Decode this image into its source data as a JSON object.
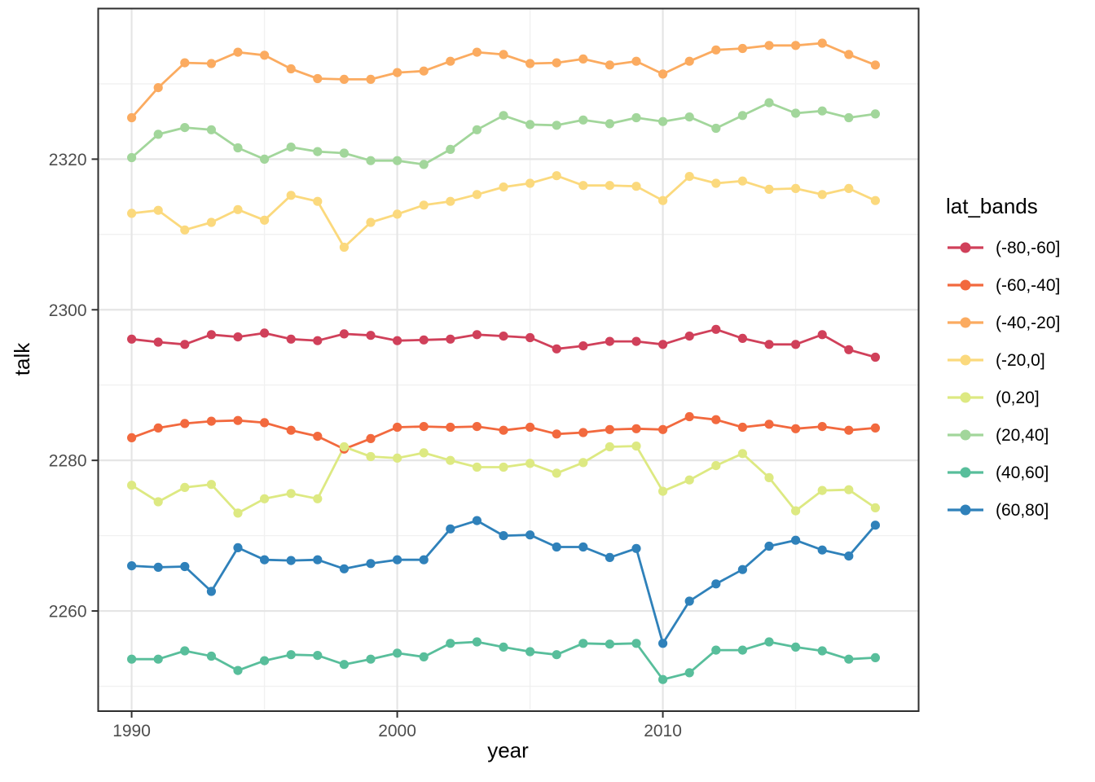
{
  "figure": {
    "x_axis_title": "year",
    "y_axis_title": "talk",
    "legend_title": "lat_bands"
  },
  "colors": {
    "background": "#FFFFFF",
    "panel_background": "#FFFFFF",
    "panel_border": "#2E2E2E",
    "grid_major": "#E5E5E5",
    "grid_minor": "#F1F1F1",
    "tick_mark": "#333333",
    "tick_label": "#4D4D4D",
    "axis_title": "#000000",
    "legend_text": "#000000"
  },
  "chart_data": {
    "type": "line",
    "title": "",
    "xlabel": "year",
    "ylabel": "talk",
    "legend_title": "lat_bands",
    "legend_position": "right",
    "grid": true,
    "marker": "point",
    "xlim": [
      1988.74,
      2019.63
    ],
    "ylim": [
      2246.7,
      2340.0
    ],
    "x_major_ticks": [
      1990,
      2000,
      2010
    ],
    "x_minor_gridlines": [
      1995,
      2005,
      2015
    ],
    "y_major_ticks": [
      2260,
      2280,
      2300,
      2320
    ],
    "y_minor_gridlines": [
      2250,
      2270,
      2290,
      2310,
      2330
    ],
    "x": [
      1990,
      1991,
      1992,
      1993,
      1994,
      1995,
      1996,
      1997,
      1998,
      1999,
      2000,
      2001,
      2002,
      2003,
      2004,
      2005,
      2006,
      2007,
      2008,
      2009,
      2010,
      2011,
      2012,
      2013,
      2014,
      2015,
      2016,
      2017,
      2018
    ],
    "series": [
      {
        "name": "(-80,-60]",
        "color": "#D0405A",
        "values": [
          2296.1,
          2295.7,
          2295.4,
          2296.7,
          2296.4,
          2296.9,
          2296.1,
          2295.9,
          2296.8,
          2296.6,
          2295.9,
          2296.0,
          2296.1,
          2296.7,
          2296.5,
          2296.3,
          2294.8,
          2295.2,
          2295.8,
          2295.8,
          2295.4,
          2296.5,
          2297.4,
          2296.2,
          2295.4,
          2295.4,
          2296.7,
          2294.7,
          2293.7
        ]
      },
      {
        "name": "(-60,-40]",
        "color": "#F2693E",
        "values": [
          2283.0,
          2284.3,
          2284.9,
          2285.2,
          2285.3,
          2285.0,
          2284.0,
          2283.2,
          2281.5,
          2282.9,
          2284.4,
          2284.5,
          2284.4,
          2284.5,
          2284.0,
          2284.4,
          2283.5,
          2283.7,
          2284.1,
          2284.2,
          2284.1,
          2285.8,
          2285.4,
          2284.4,
          2284.8,
          2284.2,
          2284.5,
          2284.0,
          2284.3
        ]
      },
      {
        "name": "(-40,-20]",
        "color": "#FBAB60",
        "values": [
          2325.5,
          2329.5,
          2332.8,
          2332.7,
          2334.2,
          2333.8,
          2332.0,
          2330.7,
          2330.6,
          2330.6,
          2331.5,
          2331.7,
          2333.0,
          2334.2,
          2333.9,
          2332.7,
          2332.8,
          2333.3,
          2332.5,
          2333.0,
          2331.3,
          2333.0,
          2334.5,
          2334.7,
          2335.1,
          2335.1,
          2335.4,
          2333.9,
          2332.5
        ]
      },
      {
        "name": "(-20,0]",
        "color": "#FBD97D",
        "values": [
          2312.8,
          2313.2,
          2310.6,
          2311.6,
          2313.3,
          2311.9,
          2315.2,
          2314.4,
          2308.3,
          2311.6,
          2312.7,
          2313.9,
          2314.4,
          2315.3,
          2316.3,
          2316.8,
          2317.8,
          2316.5,
          2316.5,
          2316.4,
          2314.5,
          2317.7,
          2316.8,
          2317.1,
          2316.0,
          2316.1,
          2315.3,
          2316.1,
          2314.5
        ]
      },
      {
        "name": "(0,20]",
        "color": "#DDE982",
        "values": [
          2276.7,
          2274.5,
          2276.4,
          2276.8,
          2273.0,
          2274.9,
          2275.6,
          2274.9,
          2281.8,
          2280.5,
          2280.3,
          2281.0,
          2280.0,
          2279.1,
          2279.1,
          2279.6,
          2278.3,
          2279.7,
          2281.8,
          2281.9,
          2275.9,
          2277.4,
          2279.3,
          2280.9,
          2277.7,
          2273.3,
          2276.0,
          2276.1,
          2273.7
        ]
      },
      {
        "name": "(20,40]",
        "color": "#A2D69B",
        "values": [
          2320.2,
          2323.3,
          2324.2,
          2323.9,
          2321.5,
          2320.0,
          2321.6,
          2321.0,
          2320.8,
          2319.8,
          2319.8,
          2319.3,
          2321.3,
          2323.9,
          2325.8,
          2324.6,
          2324.5,
          2325.2,
          2324.7,
          2325.5,
          2325.0,
          2325.6,
          2324.1,
          2325.8,
          2327.5,
          2326.1,
          2326.4,
          2325.5,
          2326.0
        ]
      },
      {
        "name": "(40,60]",
        "color": "#58BE9B",
        "values": [
          2253.6,
          2253.6,
          2254.7,
          2254.0,
          2252.1,
          2253.4,
          2254.2,
          2254.1,
          2252.9,
          2253.6,
          2254.4,
          2253.9,
          2255.7,
          2255.9,
          2255.2,
          2254.6,
          2254.2,
          2255.7,
          2255.6,
          2255.7,
          2250.9,
          2251.8,
          2254.8,
          2254.8,
          2255.9,
          2255.2,
          2254.7,
          2253.6,
          2253.8
        ]
      },
      {
        "name": "(60,80]",
        "color": "#2F81BA",
        "values": [
          2266.0,
          2265.8,
          2265.9,
          2262.6,
          2268.4,
          2266.8,
          2266.7,
          2266.8,
          2265.6,
          2266.3,
          2266.8,
          2266.8,
          2270.9,
          2272.0,
          2270.0,
          2270.1,
          2268.5,
          2268.5,
          2267.1,
          2268.3,
          2255.7,
          2261.3,
          2263.6,
          2265.5,
          2268.6,
          2269.4,
          2268.1,
          2267.3,
          2271.4
        ]
      }
    ]
  }
}
